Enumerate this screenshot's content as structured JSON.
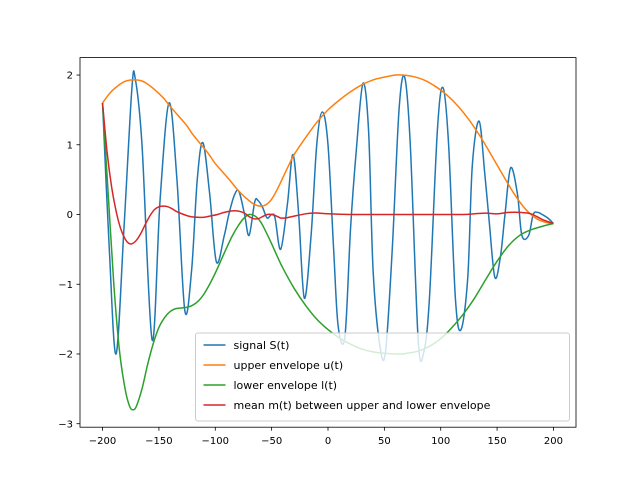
{
  "chart_data": {
    "type": "line",
    "title": "",
    "xlabel": "",
    "ylabel": "",
    "xlim": [
      -220,
      220
    ],
    "ylim": [
      -3.05,
      2.25
    ],
    "x_ticks": [
      -200,
      -150,
      -100,
      -50,
      0,
      50,
      100,
      150,
      200
    ],
    "x_tick_labels": [
      "−200",
      "−150",
      "−100",
      "−50",
      "0",
      "50",
      "100",
      "150",
      "200"
    ],
    "y_ticks": [
      -3,
      -2,
      -1,
      0,
      1,
      2
    ],
    "y_tick_labels": [
      "−3",
      "−2",
      "−1",
      "0",
      "1",
      "2"
    ],
    "grid": false,
    "legend_position": "lower right",
    "series": [
      {
        "name": "signal S(t)",
        "color": "#1f77b4",
        "x": [
          -200,
          -194,
          -188,
          -181,
          -174,
          -171,
          -165,
          -156,
          -149,
          -141,
          -134,
          -127,
          -121,
          -116,
          -111,
          -105,
          -99,
          -92,
          -88,
          -83,
          -79,
          -74,
          -70,
          -65,
          -62,
          -58,
          -54,
          -50,
          -47,
          -42,
          -36,
          -31,
          -26,
          -21,
          -15,
          -10,
          -5,
          0,
          5,
          9,
          15,
          20,
          25,
          31,
          36,
          40,
          46,
          51,
          57,
          63,
          68,
          73,
          80,
          85,
          90,
          97,
          102,
          107,
          113,
          118,
          124,
          128,
          134,
          139,
          143,
          148,
          153,
          157,
          162,
          168,
          172,
          178,
          182,
          186,
          190,
          195,
          200
        ],
        "y": [
          1.6,
          -0.5,
          -2.0,
          -0.2,
          1.8,
          1.95,
          1.0,
          -1.8,
          0.2,
          1.6,
          0.5,
          -1.38,
          -0.8,
          0.5,
          1.03,
          0.3,
          -0.68,
          -0.3,
          0.0,
          0.28,
          0.33,
          0.0,
          -0.3,
          0.18,
          0.2,
          0.1,
          -0.05,
          0.0,
          -0.05,
          -0.5,
          0.15,
          0.86,
          0.0,
          -1.2,
          -0.3,
          1.0,
          1.47,
          1.0,
          -0.5,
          -1.6,
          -1.75,
          -0.2,
          0.9,
          1.88,
          1.2,
          -0.8,
          -1.88,
          -1.97,
          -0.5,
          1.5,
          1.97,
          1.0,
          -1.8,
          -1.97,
          -1.2,
          1.2,
          1.82,
          1.0,
          -1.2,
          -1.65,
          -0.9,
          0.7,
          1.34,
          0.6,
          -0.1,
          -0.9,
          -0.6,
          0.0,
          0.67,
          0.3,
          -0.3,
          -0.3,
          0.0,
          0.03,
          0.0,
          -0.05,
          -0.13
        ]
      },
      {
        "name": "upper envelope u(t)",
        "color": "#ff7f0e",
        "x": [
          -200,
          -193,
          -186,
          -180,
          -173,
          -166,
          -160,
          -153,
          -146,
          -140,
          -133,
          -126,
          -120,
          -113,
          -106,
          -100,
          -93,
          -86,
          -80,
          -73,
          -66,
          -60,
          -55,
          -50,
          -45,
          -40,
          -35,
          -30,
          -20,
          -10,
          0,
          10,
          20,
          30,
          40,
          50,
          60,
          66,
          75,
          85,
          95,
          105,
          115,
          125,
          135,
          145,
          155,
          165,
          175,
          185,
          195,
          200
        ],
        "y": [
          1.6,
          1.75,
          1.85,
          1.91,
          1.93,
          1.92,
          1.87,
          1.78,
          1.67,
          1.55,
          1.42,
          1.29,
          1.15,
          1.01,
          0.87,
          0.73,
          0.6,
          0.47,
          0.35,
          0.24,
          0.15,
          0.12,
          0.14,
          0.22,
          0.36,
          0.53,
          0.7,
          0.86,
          1.1,
          1.32,
          1.5,
          1.64,
          1.76,
          1.86,
          1.93,
          1.97,
          2.0,
          2.0,
          1.98,
          1.93,
          1.84,
          1.72,
          1.56,
          1.36,
          1.12,
          0.85,
          0.57,
          0.3,
          0.08,
          -0.06,
          -0.12,
          -0.13
        ]
      },
      {
        "name": "lower envelope l(t)",
        "color": "#2ca02c",
        "x": [
          -200,
          -195,
          -190,
          -185,
          -180,
          -176,
          -173,
          -170,
          -165,
          -160,
          -155,
          -150,
          -145,
          -140,
          -135,
          -130,
          -125,
          -120,
          -115,
          -110,
          -105,
          -100,
          -95,
          -90,
          -85,
          -80,
          -75,
          -70,
          -65,
          -60,
          -55,
          -50,
          -45,
          -40,
          -30,
          -20,
          -10,
          0,
          10,
          20,
          30,
          40,
          50,
          60,
          66,
          70,
          80,
          90,
          100,
          110,
          120,
          130,
          140,
          150,
          160,
          170,
          180,
          190,
          200
        ],
        "y": [
          1.6,
          0.3,
          -1.0,
          -1.95,
          -2.5,
          -2.75,
          -2.8,
          -2.75,
          -2.5,
          -2.15,
          -1.85,
          -1.62,
          -1.48,
          -1.39,
          -1.35,
          -1.34,
          -1.33,
          -1.3,
          -1.24,
          -1.14,
          -1.0,
          -0.84,
          -0.66,
          -0.48,
          -0.31,
          -0.17,
          -0.06,
          0.0,
          -0.02,
          -0.1,
          -0.25,
          -0.42,
          -0.6,
          -0.77,
          -1.06,
          -1.3,
          -1.5,
          -1.65,
          -1.77,
          -1.86,
          -1.93,
          -1.97,
          -1.99,
          -2.0,
          -2.0,
          -1.99,
          -1.96,
          -1.89,
          -1.78,
          -1.62,
          -1.43,
          -1.2,
          -0.93,
          -0.67,
          -0.45,
          -0.3,
          -0.22,
          -0.17,
          -0.13
        ]
      },
      {
        "name": "mean m(t) between upper and lower envelope",
        "color": "#d62728",
        "x": [
          -200,
          -196,
          -192,
          -188,
          -184,
          -180,
          -177,
          -174,
          -170,
          -166,
          -162,
          -158,
          -154,
          -150,
          -146,
          -142,
          -138,
          -134,
          -128,
          -122,
          -116,
          -110,
          -104,
          -98,
          -92,
          -86,
          -80,
          -74,
          -70,
          -66,
          -62,
          -58,
          -54,
          -50,
          -46,
          -42,
          -38,
          -32,
          -26,
          -20,
          -14,
          -8,
          0,
          20,
          40,
          60,
          80,
          100,
          120,
          130,
          140,
          150,
          160,
          170,
          180,
          190,
          200
        ],
        "y": [
          1.6,
          0.9,
          0.4,
          0.05,
          -0.2,
          -0.35,
          -0.41,
          -0.42,
          -0.37,
          -0.27,
          -0.14,
          -0.02,
          0.07,
          0.11,
          0.12,
          0.11,
          0.08,
          0.04,
          0.0,
          -0.03,
          -0.04,
          -0.04,
          -0.02,
          0.0,
          0.03,
          0.05,
          0.05,
          0.02,
          -0.03,
          -0.06,
          -0.06,
          -0.03,
          0.0,
          0.0,
          -0.02,
          -0.05,
          -0.05,
          -0.03,
          -0.01,
          0.01,
          0.02,
          0.02,
          0.01,
          0.0,
          0.0,
          0.0,
          0.0,
          0.0,
          0.0,
          0.01,
          0.02,
          0.01,
          0.03,
          0.03,
          0.01,
          -0.07,
          -0.13
        ]
      }
    ]
  }
}
